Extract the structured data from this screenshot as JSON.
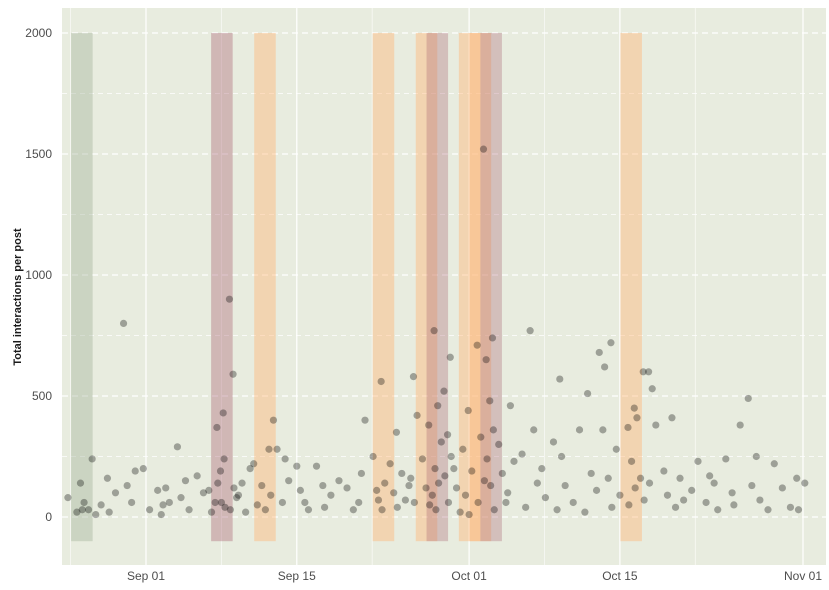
{
  "chart_data": {
    "type": "scatter",
    "title": "",
    "xlabel": "",
    "ylabel": "Total interactions per post",
    "x_type": "date",
    "xlim": [
      "2018-08-23",
      "2018-11-02"
    ],
    "ylim": [
      -150,
      2050
    ],
    "x_ticks": [
      {
        "value": "2018-09-01",
        "label": "Sep 01"
      },
      {
        "value": "2018-09-15",
        "label": "Sep 15"
      },
      {
        "value": "2018-10-01",
        "label": "Oct 01"
      },
      {
        "value": "2018-10-15",
        "label": "Oct 15"
      },
      {
        "value": "2018-11-01",
        "label": "Nov 01"
      }
    ],
    "y_ticks": [
      0,
      500,
      1000,
      1500,
      2000
    ],
    "grid": true,
    "background_color": "#e8ecdf",
    "point_color": "#000000",
    "point_opacity": 0.32,
    "highlight_ranges": [
      {
        "start": "2018-08-25",
        "end": "2018-08-27",
        "color": "#a9b7a0",
        "opacity": 0.45
      },
      {
        "start": "2018-09-07",
        "end": "2018-09-09",
        "color": "#a86070",
        "opacity": 0.38
      },
      {
        "start": "2018-09-11",
        "end": "2018-09-13",
        "color": "#ffb77a",
        "opacity": 0.45
      },
      {
        "start": "2018-09-22",
        "end": "2018-09-24",
        "color": "#ffb77a",
        "opacity": 0.45
      },
      {
        "start": "2018-09-26",
        "end": "2018-09-28",
        "color": "#ffb77a",
        "opacity": 0.45
      },
      {
        "start": "2018-09-27",
        "end": "2018-09-29",
        "color": "#a86070",
        "opacity": 0.32
      },
      {
        "start": "2018-09-30",
        "end": "2018-10-02",
        "color": "#ffb77a",
        "opacity": 0.45
      },
      {
        "start": "2018-10-01",
        "end": "2018-10-03",
        "color": "#ffb77a",
        "opacity": 0.45
      },
      {
        "start": "2018-10-02",
        "end": "2018-10-04",
        "color": "#a86070",
        "opacity": 0.32
      },
      {
        "start": "2018-10-15",
        "end": "2018-10-17",
        "color": "#ffb77a",
        "opacity": 0.45
      }
    ],
    "points": [
      [
        "2018-08-26",
        20
      ],
      [
        "2018-08-26",
        140
      ],
      [
        "2018-08-26",
        60
      ],
      [
        "2018-08-27",
        30
      ],
      [
        "2018-08-27",
        240
      ],
      [
        "2018-08-27",
        10
      ],
      [
        "2018-08-25",
        80
      ],
      [
        "2018-08-26",
        30
      ],
      [
        "2018-08-28",
        160
      ],
      [
        "2018-08-28",
        50
      ],
      [
        "2018-08-29",
        100
      ],
      [
        "2018-08-29",
        20
      ],
      [
        "2018-08-30",
        800
      ],
      [
        "2018-08-30",
        130
      ],
      [
        "2018-08-31",
        60
      ],
      [
        "2018-08-31",
        190
      ],
      [
        "2018-09-01",
        30
      ],
      [
        "2018-09-01",
        200
      ],
      [
        "2018-09-02",
        110
      ],
      [
        "2018-09-02",
        10
      ],
      [
        "2018-09-03",
        120
      ],
      [
        "2018-09-03",
        60
      ],
      [
        "2018-09-03",
        50
      ],
      [
        "2018-09-04",
        290
      ],
      [
        "2018-09-04",
        80
      ],
      [
        "2018-09-05",
        150
      ],
      [
        "2018-09-05",
        30
      ],
      [
        "2018-09-06",
        100
      ],
      [
        "2018-09-06",
        170
      ],
      [
        "2018-09-07",
        20
      ],
      [
        "2018-09-07",
        60
      ],
      [
        "2018-09-07",
        110
      ],
      [
        "2018-09-08",
        430
      ],
      [
        "2018-09-08",
        370
      ],
      [
        "2018-09-08",
        190
      ],
      [
        "2018-09-08",
        240
      ],
      [
        "2018-09-08",
        140
      ],
      [
        "2018-09-08",
        60
      ],
      [
        "2018-09-08",
        40
      ],
      [
        "2018-09-09",
        900
      ],
      [
        "2018-09-09",
        590
      ],
      [
        "2018-09-09",
        80
      ],
      [
        "2018-09-09",
        30
      ],
      [
        "2018-09-09",
        120
      ],
      [
        "2018-09-10",
        90
      ],
      [
        "2018-09-10",
        140
      ],
      [
        "2018-09-10",
        20
      ],
      [
        "2018-09-11",
        200
      ],
      [
        "2018-09-11",
        220
      ],
      [
        "2018-09-11",
        50
      ],
      [
        "2018-09-12",
        130
      ],
      [
        "2018-09-12",
        30
      ],
      [
        "2018-09-12",
        280
      ],
      [
        "2018-09-13",
        400
      ],
      [
        "2018-09-13",
        280
      ],
      [
        "2018-09-13",
        90
      ],
      [
        "2018-09-14",
        240
      ],
      [
        "2018-09-14",
        150
      ],
      [
        "2018-09-14",
        60
      ],
      [
        "2018-09-15",
        210
      ],
      [
        "2018-09-15",
        110
      ],
      [
        "2018-09-16",
        60
      ],
      [
        "2018-09-16",
        30
      ],
      [
        "2018-09-17",
        130
      ],
      [
        "2018-09-17",
        210
      ],
      [
        "2018-09-18",
        90
      ],
      [
        "2018-09-18",
        40
      ],
      [
        "2018-09-19",
        150
      ],
      [
        "2018-09-20",
        30
      ],
      [
        "2018-09-20",
        120
      ],
      [
        "2018-09-21",
        180
      ],
      [
        "2018-09-21",
        400
      ],
      [
        "2018-09-21",
        60
      ],
      [
        "2018-09-22",
        250
      ],
      [
        "2018-09-22",
        110
      ],
      [
        "2018-09-23",
        560
      ],
      [
        "2018-09-23",
        140
      ],
      [
        "2018-09-23",
        70
      ],
      [
        "2018-09-23",
        30
      ],
      [
        "2018-09-24",
        350
      ],
      [
        "2018-09-24",
        220
      ],
      [
        "2018-09-24",
        100
      ],
      [
        "2018-09-24",
        40
      ],
      [
        "2018-09-25",
        180
      ],
      [
        "2018-09-25",
        70
      ],
      [
        "2018-09-25",
        130
      ],
      [
        "2018-09-26",
        580
      ],
      [
        "2018-09-26",
        420
      ],
      [
        "2018-09-26",
        160
      ],
      [
        "2018-09-26",
        60
      ],
      [
        "2018-09-27",
        380
      ],
      [
        "2018-09-27",
        240
      ],
      [
        "2018-09-27",
        120
      ],
      [
        "2018-09-27",
        50
      ],
      [
        "2018-09-28",
        770
      ],
      [
        "2018-09-28",
        460
      ],
      [
        "2018-09-28",
        310
      ],
      [
        "2018-09-28",
        200
      ],
      [
        "2018-09-28",
        140
      ],
      [
        "2018-09-28",
        90
      ],
      [
        "2018-09-28",
        30
      ],
      [
        "2018-09-29",
        660
      ],
      [
        "2018-09-29",
        520
      ],
      [
        "2018-09-29",
        340
      ],
      [
        "2018-09-29",
        250
      ],
      [
        "2018-09-29",
        170
      ],
      [
        "2018-09-29",
        60
      ],
      [
        "2018-09-30",
        280
      ],
      [
        "2018-09-30",
        120
      ],
      [
        "2018-09-30",
        20
      ],
      [
        "2018-09-30",
        200
      ],
      [
        "2018-10-01",
        440
      ],
      [
        "2018-10-01",
        190
      ],
      [
        "2018-10-01",
        90
      ],
      [
        "2018-10-01",
        10
      ],
      [
        "2018-10-02",
        1520
      ],
      [
        "2018-10-02",
        710
      ],
      [
        "2018-10-02",
        330
      ],
      [
        "2018-10-02",
        150
      ],
      [
        "2018-10-02",
        60
      ],
      [
        "2018-10-03",
        740
      ],
      [
        "2018-10-03",
        650
      ],
      [
        "2018-10-03",
        480
      ],
      [
        "2018-10-03",
        360
      ],
      [
        "2018-10-03",
        240
      ],
      [
        "2018-10-03",
        130
      ],
      [
        "2018-10-03",
        30
      ],
      [
        "2018-10-04",
        300
      ],
      [
        "2018-10-04",
        180
      ],
      [
        "2018-10-04",
        60
      ],
      [
        "2018-10-05",
        460
      ],
      [
        "2018-10-05",
        230
      ],
      [
        "2018-10-05",
        100
      ],
      [
        "2018-10-06",
        260
      ],
      [
        "2018-10-06",
        40
      ],
      [
        "2018-10-07",
        770
      ],
      [
        "2018-10-07",
        360
      ],
      [
        "2018-10-07",
        140
      ],
      [
        "2018-10-08",
        200
      ],
      [
        "2018-10-08",
        80
      ],
      [
        "2018-10-09",
        570
      ],
      [
        "2018-10-09",
        310
      ],
      [
        "2018-10-09",
        30
      ],
      [
        "2018-10-10",
        250
      ],
      [
        "2018-10-10",
        130
      ],
      [
        "2018-10-11",
        360
      ],
      [
        "2018-10-11",
        60
      ],
      [
        "2018-10-12",
        510
      ],
      [
        "2018-10-12",
        180
      ],
      [
        "2018-10-12",
        20
      ],
      [
        "2018-10-13",
        680
      ],
      [
        "2018-10-13",
        360
      ],
      [
        "2018-10-13",
        110
      ],
      [
        "2018-10-14",
        720
      ],
      [
        "2018-10-14",
        620
      ],
      [
        "2018-10-14",
        160
      ],
      [
        "2018-10-14",
        40
      ],
      [
        "2018-10-15",
        280
      ],
      [
        "2018-10-15",
        90
      ],
      [
        "2018-10-16",
        450
      ],
      [
        "2018-10-16",
        370
      ],
      [
        "2018-10-16",
        230
      ],
      [
        "2018-10-16",
        120
      ],
      [
        "2018-10-16",
        50
      ],
      [
        "2018-10-17",
        600
      ],
      [
        "2018-10-17",
        410
      ],
      [
        "2018-10-17",
        160
      ],
      [
        "2018-10-17",
        70
      ],
      [
        "2018-10-18",
        600
      ],
      [
        "2018-10-18",
        530
      ],
      [
        "2018-10-18",
        380
      ],
      [
        "2018-10-18",
        140
      ],
      [
        "2018-10-19",
        190
      ],
      [
        "2018-10-19",
        90
      ],
      [
        "2018-10-20",
        410
      ],
      [
        "2018-10-20",
        40
      ],
      [
        "2018-10-21",
        160
      ],
      [
        "2018-10-21",
        70
      ],
      [
        "2018-10-22",
        230
      ],
      [
        "2018-10-22",
        110
      ],
      [
        "2018-10-23",
        60
      ],
      [
        "2018-10-23",
        170
      ],
      [
        "2018-10-24",
        140
      ],
      [
        "2018-10-24",
        30
      ],
      [
        "2018-10-25",
        100
      ],
      [
        "2018-10-25",
        240
      ],
      [
        "2018-10-26",
        380
      ],
      [
        "2018-10-26",
        50
      ],
      [
        "2018-10-27",
        490
      ],
      [
        "2018-10-27",
        130
      ],
      [
        "2018-10-28",
        250
      ],
      [
        "2018-10-28",
        70
      ],
      [
        "2018-10-29",
        220
      ],
      [
        "2018-10-29",
        30
      ],
      [
        "2018-10-30",
        120
      ],
      [
        "2018-10-31",
        160
      ],
      [
        "2018-10-31",
        40
      ],
      [
        "2018-11-01",
        140
      ],
      [
        "2018-11-01",
        30
      ]
    ]
  }
}
